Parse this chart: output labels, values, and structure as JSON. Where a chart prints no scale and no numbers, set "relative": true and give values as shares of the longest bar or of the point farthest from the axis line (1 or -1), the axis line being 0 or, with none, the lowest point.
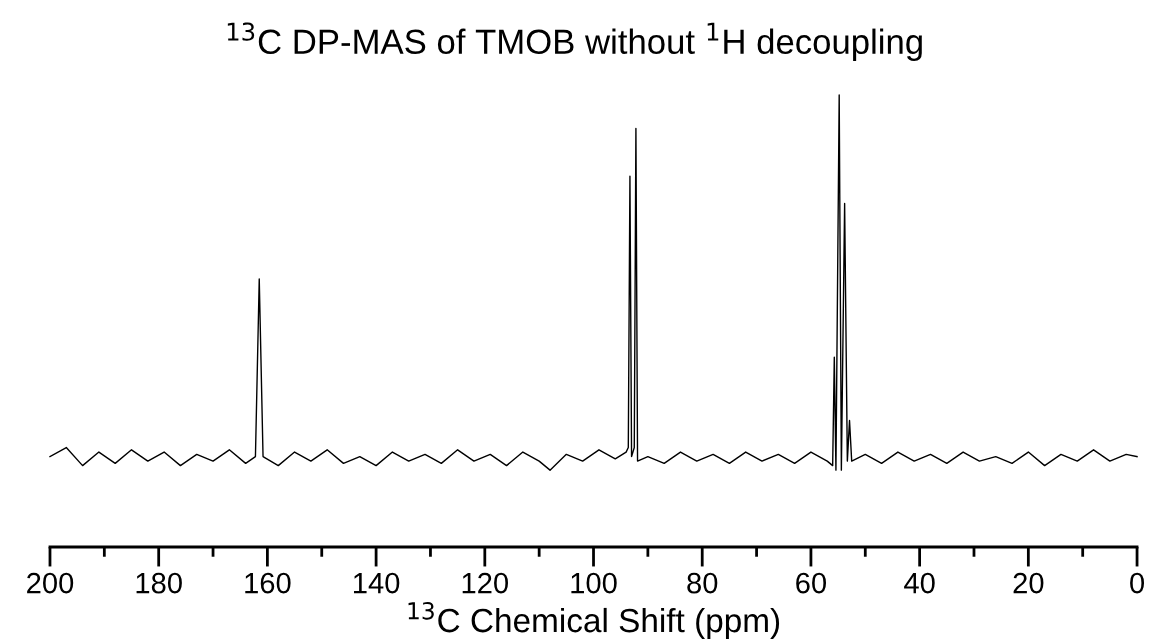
{
  "chart_data": {
    "type": "line",
    "title": "$^{13}$C DP-MAS of TMOB without $^{1}$H decoupling",
    "xlabel": "$^{13}$C Chemical Shift (ppm)",
    "relative": true,
    "xlim": [
      200,
      0
    ],
    "xticks": [
      200,
      180,
      160,
      140,
      120,
      100,
      80,
      60,
      40,
      20,
      0
    ],
    "tick_labels": "x",
    "grid": false,
    "marker": "none",
    "line_style": "solid",
    "series": [
      {
        "color": "#000000",
        "x": [
          200,
          197,
          194,
          191,
          188,
          185,
          182,
          179,
          176,
          173,
          170,
          167,
          164,
          162.2,
          161.5,
          160.8,
          158,
          155,
          152,
          149,
          146,
          143,
          140,
          137,
          134,
          131,
          128,
          125,
          122,
          119,
          116,
          113,
          110,
          108,
          105,
          102,
          99,
          96,
          94,
          93.6,
          93.3,
          93.0,
          92.5,
          92.2,
          91.9,
          90,
          87,
          84,
          81,
          78,
          75,
          72,
          69,
          66,
          63,
          60,
          57,
          56.0,
          55.7,
          55.4,
          54.8,
          54.4,
          53.8,
          53.3,
          52.9,
          52.5,
          50,
          47,
          44,
          41,
          38,
          35,
          32,
          29,
          26,
          23,
          20,
          17,
          14,
          11,
          8,
          5,
          2,
          0
        ],
        "values": [
          0.2,
          0.22,
          0.18,
          0.21,
          0.185,
          0.215,
          0.19,
          0.21,
          0.18,
          0.205,
          0.19,
          0.215,
          0.185,
          0.2,
          0.593,
          0.2,
          0.18,
          0.21,
          0.19,
          0.215,
          0.185,
          0.2,
          0.18,
          0.21,
          0.19,
          0.205,
          0.185,
          0.215,
          0.19,
          0.205,
          0.18,
          0.21,
          0.19,
          0.17,
          0.205,
          0.19,
          0.215,
          0.195,
          0.21,
          0.22,
          0.82,
          0.2,
          0.22,
          0.926,
          0.19,
          0.2,
          0.185,
          0.21,
          0.19,
          0.205,
          0.185,
          0.21,
          0.19,
          0.205,
          0.185,
          0.21,
          0.19,
          0.18,
          0.42,
          0.17,
          1.0,
          0.17,
          0.76,
          0.19,
          0.28,
          0.19,
          0.205,
          0.185,
          0.21,
          0.19,
          0.205,
          0.185,
          0.21,
          0.19,
          0.2,
          0.185,
          0.21,
          0.18,
          0.205,
          0.19,
          0.215,
          0.19,
          0.205,
          0.2
        ]
      }
    ]
  }
}
